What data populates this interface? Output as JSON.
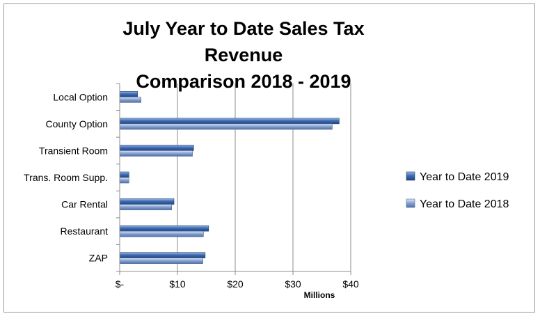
{
  "chart_data": {
    "type": "bar",
    "orientation": "horizontal",
    "title_line1": "July Year to Date Sales Tax Revenue",
    "title_line2": "Comparison 2018 - 2019",
    "xlabel": "Millions",
    "ylabel": "",
    "xlim": [
      0,
      40
    ],
    "xticks": [
      0,
      10,
      20,
      30,
      40
    ],
    "xtick_labels": [
      "$-",
      "$10",
      "$20",
      "$30",
      "$40"
    ],
    "grid": true,
    "legend_position": "right",
    "categories": [
      "Local Option",
      "County Option",
      "Transient Room",
      "Trans. Room Supp.",
      "Car Rental",
      "Restaurant",
      "ZAP"
    ],
    "series": [
      {
        "name": "Year to Date 2019",
        "color": "#3a66a8",
        "values": [
          3.1,
          38.0,
          12.8,
          1.6,
          9.4,
          15.4,
          14.8
        ]
      },
      {
        "name": "Year to Date 2018",
        "color": "#7f9fcf",
        "values": [
          3.7,
          36.8,
          12.6,
          1.6,
          9.0,
          14.5,
          14.4
        ]
      }
    ]
  }
}
